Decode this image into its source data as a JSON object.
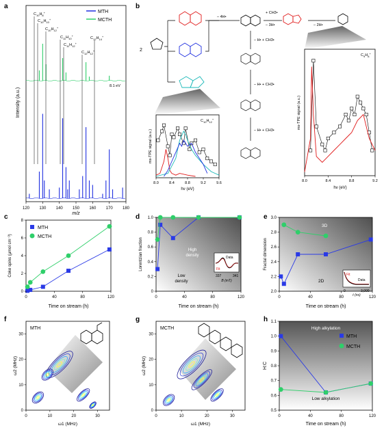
{
  "panels": {
    "a": "a",
    "b": "b",
    "c": "c",
    "d": "d",
    "e": "e",
    "f": "f",
    "g": "g",
    "h": "h"
  },
  "colors": {
    "blue": "#1f2fe0",
    "green": "#2fcf6a",
    "red": "#e01919",
    "cyan": "#1ab8b8",
    "black": "#000000",
    "marker_blue": "#2a3ae6",
    "marker_green": "#2fcf6a"
  },
  "legend": {
    "mth": "MTH",
    "mcth": "MCTH"
  },
  "chart_data": [
    {
      "id": "a",
      "type": "line",
      "xlabel": "m/z",
      "ylabel": "Intensity (a.u.)",
      "xlim": [
        120,
        180
      ],
      "xticks": [
        "120",
        "130",
        "140",
        "150",
        "160",
        "170",
        "180"
      ],
      "series": [
        {
          "name": "MTH",
          "color": "#1f2fe0",
          "peaks": [
            [
              122,
              0.05
            ],
            [
              128,
              0.3
            ],
            [
              130,
              0.95
            ],
            [
              131,
              0.2
            ],
            [
              134,
              0.1
            ],
            [
              140,
              0.12
            ],
            [
              142,
              0.9
            ],
            [
              144,
              0.35
            ],
            [
              145,
              0.1
            ],
            [
              146,
              0.2
            ],
            [
              152,
              0.1
            ],
            [
              154,
              0.25
            ],
            [
              156,
              0.8
            ],
            [
              158,
              0.2
            ],
            [
              160,
              0.15
            ],
            [
              166,
              0.05
            ],
            [
              168,
              0.2
            ],
            [
              170,
              0.55
            ],
            [
              172,
              0.1
            ],
            [
              178,
              0.12
            ]
          ]
        },
        {
          "name": "MCTH",
          "color": "#2fcf6a",
          "peaks": [
            [
              128,
              0.25
            ],
            [
              130,
              0.9
            ],
            [
              132,
              0.4
            ],
            [
              142,
              0.55
            ],
            [
              144,
              0.2
            ],
            [
              156,
              0.45
            ],
            [
              158,
              0.1
            ],
            [
              170,
              0.12
            ]
          ]
        }
      ],
      "annotations": [
        "C10H8+",
        "C10H10+",
        "C10H12+",
        "C11H10+",
        "C11H12+",
        "C12H12+",
        "C12H14+",
        "8.1 eV"
      ]
    },
    {
      "id": "b-left",
      "type": "line",
      "xlabel": "hν (eV)",
      "ylabel": "ms-TPE signal (a.u.)",
      "xlim": [
        8.0,
        9.6
      ],
      "xticks": [
        "8.0",
        "8.4",
        "8.8",
        "9.2",
        "9.6"
      ],
      "title": "C10H12+",
      "series": [
        {
          "name": "experiment",
          "color": "#000000",
          "marker": "square",
          "x": [
            8.05,
            8.15,
            8.2,
            8.3,
            8.35,
            8.4,
            8.45,
            8.55,
            8.6,
            8.7,
            8.75,
            8.85,
            8.9,
            9.0,
            9.1,
            9.2,
            9.3,
            9.4,
            9.5
          ],
          "y": [
            0.6,
            0.75,
            0.85,
            0.5,
            0.35,
            0.7,
            0.65,
            0.8,
            0.7,
            0.55,
            0.8,
            0.45,
            0.55,
            0.6,
            0.4,
            0.45,
            0.3,
            0.25,
            0.2
          ]
        },
        {
          "name": "red",
          "color": "#e01919",
          "x": [
            8.0,
            8.1,
            8.2,
            8.25,
            8.3,
            8.35,
            8.4,
            8.5,
            8.6,
            8.8,
            9.0
          ],
          "y": [
            0.02,
            0.05,
            0.25,
            0.45,
            0.3,
            0.1,
            0.05,
            0.02,
            0.05,
            0.02,
            0.0
          ]
        },
        {
          "name": "cyan",
          "color": "#1ab8b8",
          "x": [
            8.0,
            8.3,
            8.5,
            8.6,
            8.7,
            8.75,
            8.8,
            8.9,
            9.0,
            9.2,
            9.4,
            9.6
          ],
          "y": [
            0.0,
            0.05,
            0.3,
            0.6,
            0.75,
            0.7,
            0.6,
            0.45,
            0.35,
            0.2,
            0.08,
            0.02
          ]
        },
        {
          "name": "blue",
          "color": "#1f2fe0",
          "x": [
            8.2,
            8.3,
            8.4,
            8.5,
            8.6,
            8.65,
            8.7,
            8.8,
            8.9,
            9.0,
            9.1,
            9.2,
            9.3
          ],
          "y": [
            0.0,
            0.1,
            0.25,
            0.4,
            0.55,
            0.5,
            0.6,
            0.5,
            0.55,
            0.4,
            0.3,
            0.2,
            0.05
          ]
        }
      ]
    },
    {
      "id": "b-right",
      "type": "line",
      "xlabel": "hν (eV)",
      "ylabel": "ms-TPE signal (a.u.)",
      "xlim": [
        8.0,
        9.2
      ],
      "xticks": [
        "8.0",
        "8.4",
        "8.8",
        "9.2"
      ],
      "title": "C9H8+",
      "series": [
        {
          "name": "experiment",
          "color": "#000000",
          "marker": "square",
          "x": [
            8.1,
            8.15,
            8.2,
            8.3,
            8.35,
            8.4,
            8.5,
            8.6,
            8.7,
            8.75,
            8.8,
            8.85,
            8.9,
            8.95,
            9.0,
            9.05,
            9.1,
            9.15
          ],
          "y": [
            0.2,
            0.95,
            0.4,
            0.25,
            0.2,
            0.3,
            0.35,
            0.4,
            0.5,
            0.45,
            0.55,
            0.5,
            0.65,
            0.6,
            0.55,
            0.5,
            0.35,
            0.2
          ]
        },
        {
          "name": "red",
          "color": "#e01919",
          "x": [
            8.0,
            8.1,
            8.12,
            8.15,
            8.2,
            8.3,
            8.4,
            8.5,
            8.6,
            8.7,
            8.8,
            8.9,
            9.0,
            9.1,
            9.2
          ],
          "y": [
            0.02,
            0.3,
            0.9,
            0.5,
            0.15,
            0.1,
            0.15,
            0.2,
            0.25,
            0.3,
            0.35,
            0.45,
            0.5,
            0.3,
            0.2
          ]
        }
      ]
    },
    {
      "id": "c",
      "type": "scatter",
      "xlabel": "Time on stream (h)",
      "ylabel": "Coke spins (μmol cm⁻³)",
      "xlim": [
        0,
        120
      ],
      "ylim": [
        0,
        8
      ],
      "xticks": [
        "0",
        "40",
        "80",
        "120"
      ],
      "yticks": [
        "0",
        "2",
        "4",
        "6",
        "8"
      ],
      "series": [
        {
          "name": "MTH",
          "color": "#2a3ae6",
          "x": [
            2,
            6,
            24,
            60,
            118
          ],
          "y": [
            0.05,
            0.15,
            0.5,
            2.3,
            4.7
          ]
        },
        {
          "name": "MCTH",
          "color": "#2fcf6a",
          "x": [
            2,
            6,
            24,
            60,
            118
          ],
          "y": [
            0.5,
            1.0,
            2.2,
            4.0,
            7.3
          ]
        }
      ]
    },
    {
      "id": "d",
      "type": "scatter",
      "xlabel": "Time on stream (h)",
      "ylabel": "Lorentzian fraction",
      "xlim": [
        0,
        120
      ],
      "ylim": [
        0,
        1
      ],
      "xticks": [
        "0",
        "40",
        "80",
        "120"
      ],
      "yticks": [
        "0",
        "0.2",
        "0.4",
        "0.6",
        "0.8",
        "1.0"
      ],
      "labels": [
        "High density",
        "Low density"
      ],
      "inset": {
        "xlabel": "B (mT)",
        "xticks": [
          "337",
          "341"
        ],
        "legend": [
          "Data",
          "Fit"
        ]
      },
      "series": [
        {
          "name": "MTH",
          "color": "#2a3ae6",
          "x": [
            2,
            6,
            24,
            60,
            118
          ],
          "y": [
            0.3,
            0.9,
            0.72,
            1.0,
            1.0
          ]
        },
        {
          "name": "MCTH",
          "color": "#2fcf6a",
          "x": [
            2,
            6,
            24,
            60,
            118
          ],
          "y": [
            0.7,
            1.0,
            1.0,
            1.0,
            1.0
          ]
        }
      ]
    },
    {
      "id": "e",
      "type": "scatter",
      "xlabel": "Time on stream (h)",
      "ylabel": "Fractal dimension",
      "xlim": [
        0,
        120
      ],
      "ylim": [
        2.0,
        3.0
      ],
      "xticks": [
        "0",
        "40",
        "80",
        "120"
      ],
      "yticks": [
        "2.0",
        "2.2",
        "2.4",
        "2.6",
        "2.8",
        "3.0"
      ],
      "labels": [
        "3D",
        "2D"
      ],
      "inset": {
        "xlabel": "t (ns)",
        "xticks": [
          "0",
          "3,000"
        ],
        "legend": [
          "Fit",
          "Data"
        ]
      },
      "series": [
        {
          "name": "MTH",
          "color": "#2a3ae6",
          "x": [
            2,
            6,
            24,
            60,
            118
          ],
          "y": [
            2.2,
            2.1,
            2.5,
            2.5,
            2.7
          ]
        },
        {
          "name": "MCTH",
          "color": "#2fcf6a",
          "x": [
            6,
            24,
            60
          ],
          "y": [
            2.9,
            2.8,
            2.75
          ]
        }
      ]
    },
    {
      "id": "f",
      "type": "heatmap",
      "title": "MTH",
      "xlabel": "ω1 (MHz)",
      "ylabel": "ω2 (MHz)",
      "xlim": [
        0,
        35
      ],
      "ylim": [
        0,
        35
      ],
      "xticks": [
        "0",
        "10",
        "20",
        "30"
      ],
      "yticks": [
        "0",
        "10",
        "20",
        "30"
      ]
    },
    {
      "id": "g",
      "type": "heatmap",
      "title": "MCTH",
      "xlabel": "ω1 (MHz)",
      "ylabel": "ω2 (MHz)",
      "xlim": [
        0,
        35
      ],
      "ylim": [
        0,
        35
      ],
      "xticks": [
        "0",
        "10",
        "20",
        "30"
      ],
      "yticks": [
        "0",
        "10",
        "20",
        "30"
      ]
    },
    {
      "id": "h",
      "type": "scatter",
      "xlabel": "Time on stream (h)",
      "ylabel": "H:C",
      "xlim": [
        0,
        120
      ],
      "ylim": [
        0.5,
        1.1
      ],
      "xticks": [
        "0",
        "40",
        "80",
        "120"
      ],
      "yticks": [
        "0.5",
        "0.6",
        "0.7",
        "0.8",
        "0.9",
        "1.0",
        "1.1"
      ],
      "labels": [
        "High alkylation",
        "Low alkylation"
      ],
      "series": [
        {
          "name": "MTH",
          "color": "#2a3ae6",
          "x": [
            2,
            60,
            118
          ],
          "y": [
            1.0,
            0.62,
            0.68
          ]
        },
        {
          "name": "MCTH",
          "color": "#2fcf6a",
          "x": [
            2,
            60,
            118
          ],
          "y": [
            0.64,
            0.62,
            0.68
          ]
        }
      ]
    }
  ],
  "scheme": {
    "reagent_count": "2",
    "minus_4H": "– 4H•",
    "plus_ch3_top": "+ CH3•",
    "minus_3h": "– 3H•",
    "minus_2h": "– 2H•",
    "steps": [
      "– H• + CH3•",
      "– H• + CH3•",
      "– H• + CH3•"
    ]
  }
}
